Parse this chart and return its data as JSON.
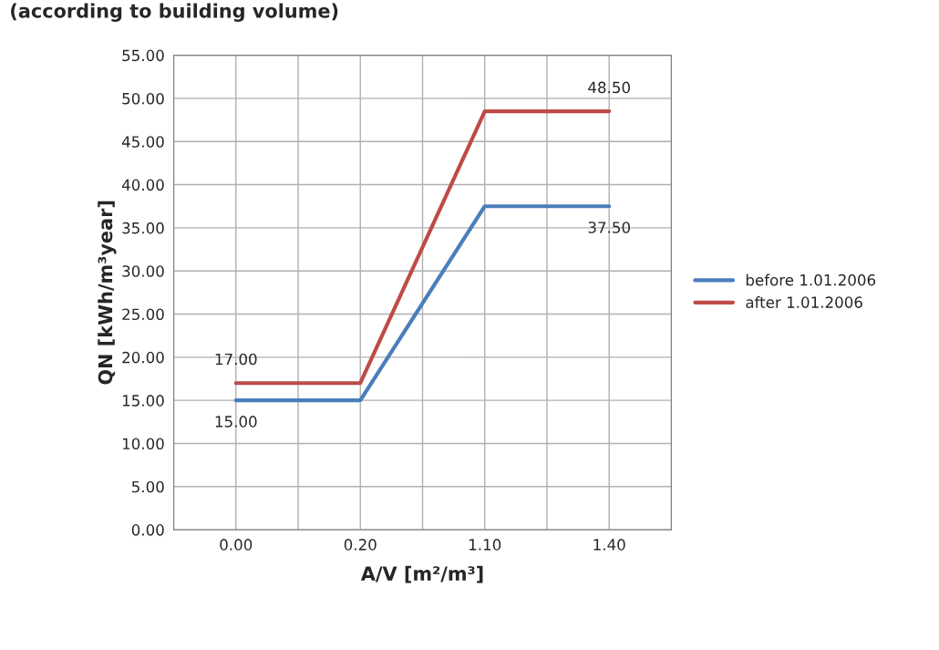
{
  "chart_data": {
    "type": "line",
    "title": "(according to building volume)",
    "xlabel": "A/V [m²/m³]",
    "ylabel": "QN [kWh/m³year]",
    "categories": [
      "0.00",
      "0.20",
      "1.10",
      "1.40"
    ],
    "series": [
      {
        "name": "before 1.01.2006",
        "color": "#4a7ebb",
        "values": [
          15.0,
          15.0,
          37.5,
          37.5
        ],
        "value_labels": [
          "15.00",
          null,
          null,
          "37.50"
        ]
      },
      {
        "name": "after 1.01.2006",
        "color": "#be4b48",
        "values": [
          17.0,
          17.0,
          48.5,
          48.5
        ],
        "value_labels": [
          "17.00",
          null,
          null,
          "48.50"
        ]
      }
    ],
    "ylim": [
      0,
      55
    ],
    "yticks": [
      {
        "value": 0,
        "label": "0.00"
      },
      {
        "value": 5,
        "label": "5.00"
      },
      {
        "value": 10,
        "label": "10.00"
      },
      {
        "value": 15,
        "label": "15.00"
      },
      {
        "value": 20,
        "label": "20.00"
      },
      {
        "value": 25,
        "label": "25.00"
      },
      {
        "value": 30,
        "label": "30.00"
      },
      {
        "value": 35,
        "label": "35.00"
      },
      {
        "value": 40,
        "label": "40.00"
      },
      {
        "value": 45,
        "label": "45.00"
      },
      {
        "value": 50,
        "label": "50.00"
      },
      {
        "value": 55,
        "label": "55.00"
      }
    ],
    "grid": true,
    "legend": "right",
    "marker": "none",
    "line_style": "solid"
  }
}
